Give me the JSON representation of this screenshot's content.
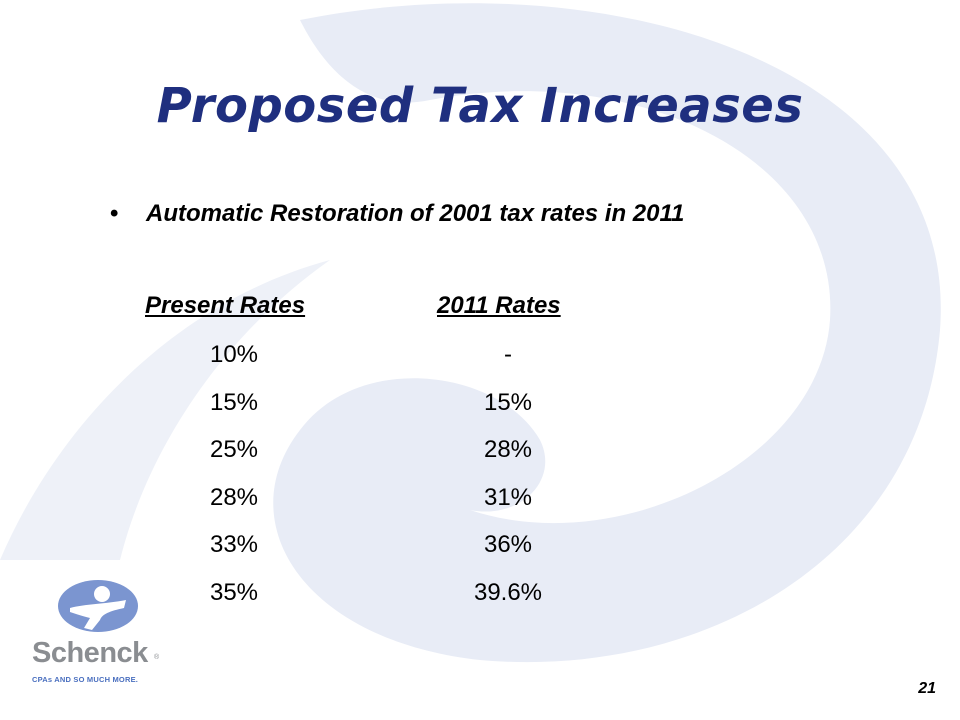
{
  "slide": {
    "title": "Proposed Tax Increases",
    "bullet": "Automatic Restoration of 2001 tax rates in 2011",
    "bullet_glyph": "•",
    "page_number": "21"
  },
  "rates_table": {
    "headers": [
      "Present Rates",
      "2011 Rates"
    ],
    "rows": [
      [
        "10%",
        "-"
      ],
      [
        "15%",
        "15%"
      ],
      [
        "25%",
        "28%"
      ],
      [
        "28%",
        "31%"
      ],
      [
        "33%",
        "36%"
      ],
      [
        "35%",
        "39.6%"
      ]
    ]
  },
  "logo": {
    "word": "Schenck",
    "tagline": "CPAs AND SO MUCH MORE.",
    "reg_mark": "®",
    "colors": {
      "figure": "#7b95d0",
      "word": "#8a8d91",
      "tagline": "#4a6fbf"
    }
  },
  "colors": {
    "title": "#1f2f7f",
    "swirl": "#e8ecf6"
  }
}
